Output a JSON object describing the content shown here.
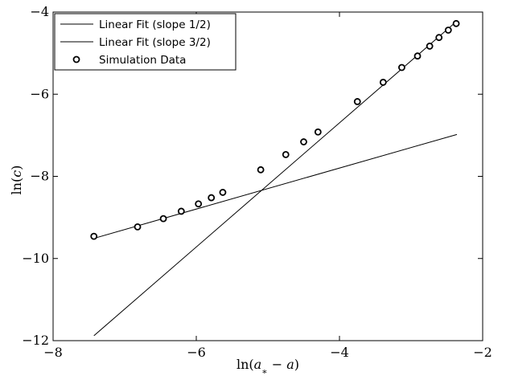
{
  "chart_data": {
    "type": "scatter",
    "xlabel": "ln(a* − a)",
    "ylabel": "ln(c)",
    "xlim": [
      -8,
      -2
    ],
    "ylim": [
      -12,
      -4
    ],
    "x_ticks": [
      -8,
      -6,
      -4,
      -2
    ],
    "y_ticks": [
      -12,
      -10,
      -8,
      -6,
      -4
    ],
    "x_tick_labels": [
      "−8",
      "−6",
      "−4",
      "−2"
    ],
    "y_tick_labels": [
      "−12",
      "−10",
      "−8",
      "−6",
      "−4"
    ],
    "legend_position": "top-left",
    "series": [
      {
        "name": "Linear Fit (slope 1/2)",
        "kind": "line",
        "color": "#000000",
        "x": [
          -7.43,
          -2.36
        ],
        "y": [
          -9.51,
          -6.98
        ]
      },
      {
        "name": "Linear Fit (slope 3/2)",
        "kind": "line",
        "color": "#000000",
        "x": [
          -7.43,
          -2.36
        ],
        "y": [
          -11.88,
          -4.22
        ]
      },
      {
        "name": "Simulation Data",
        "kind": "scatter",
        "marker": "open-circle",
        "color": "#000000",
        "x": [
          -7.43,
          -6.82,
          -6.46,
          -6.21,
          -5.97,
          -5.79,
          -5.63,
          -5.1,
          -4.75,
          -4.5,
          -4.3,
          -3.75,
          -3.39,
          -3.13,
          -2.91,
          -2.74,
          -2.61,
          -2.48,
          -2.37
        ],
        "y": [
          -9.46,
          -9.23,
          -9.03,
          -8.85,
          -8.67,
          -8.52,
          -8.39,
          -7.84,
          -7.47,
          -7.16,
          -6.92,
          -6.18,
          -5.71,
          -5.35,
          -5.07,
          -4.83,
          -4.62,
          -4.44,
          -4.28
        ]
      }
    ]
  }
}
